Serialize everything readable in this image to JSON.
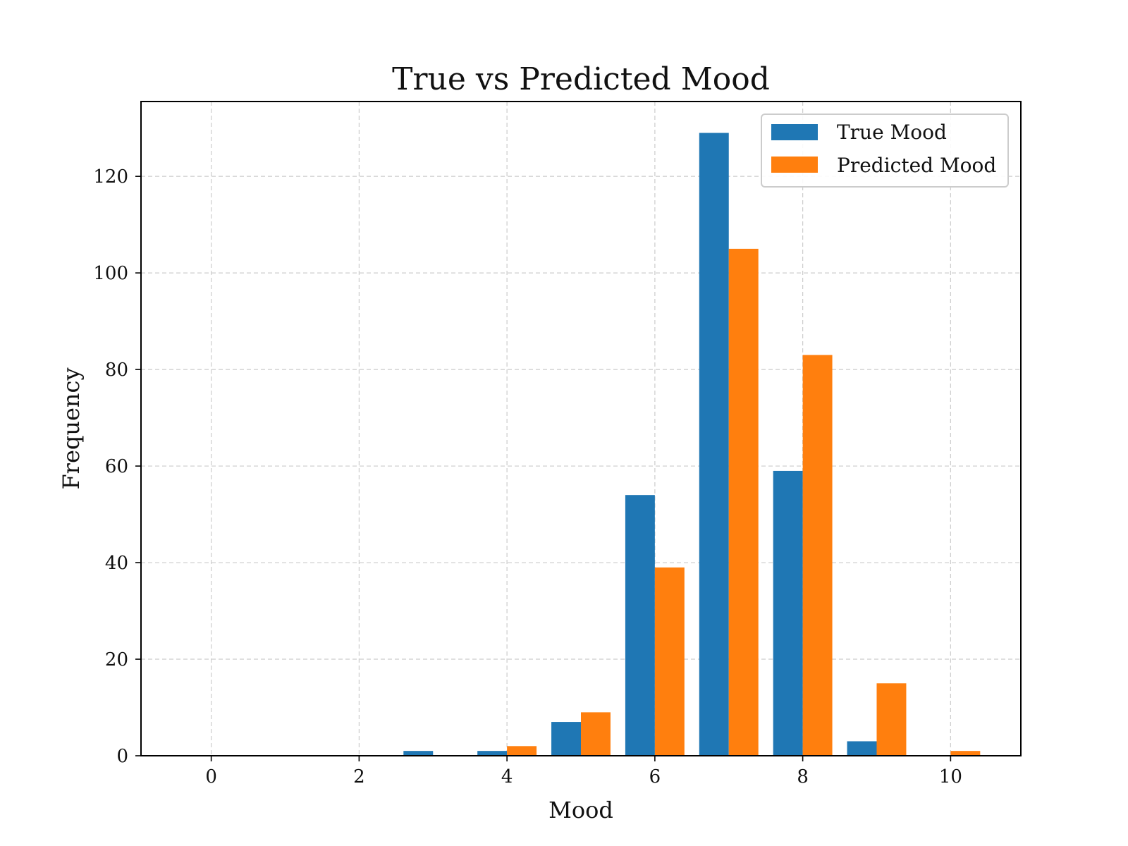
{
  "chart_data": {
    "type": "bar",
    "title": "True vs Predicted Mood",
    "xlabel": "Mood",
    "ylabel": "Frequency",
    "x": [
      3,
      4,
      5,
      6,
      7,
      8,
      9,
      10
    ],
    "series": [
      {
        "name": "True Mood",
        "color": "#1f77b4",
        "values": [
          1,
          1,
          7,
          54,
          129,
          59,
          3,
          0
        ]
      },
      {
        "name": "Predicted Mood",
        "color": "#ff7f0e",
        "values": [
          0,
          2,
          9,
          39,
          105,
          83,
          15,
          1
        ]
      }
    ],
    "xlim": [
      -0.95,
      10.95
    ],
    "ylim": [
      0,
      135.5
    ],
    "xticks": [
      0,
      2,
      4,
      6,
      8,
      10
    ],
    "yticks": [
      0,
      20,
      40,
      60,
      80,
      100,
      120
    ],
    "grid": true,
    "legend_position": "top-right"
  }
}
